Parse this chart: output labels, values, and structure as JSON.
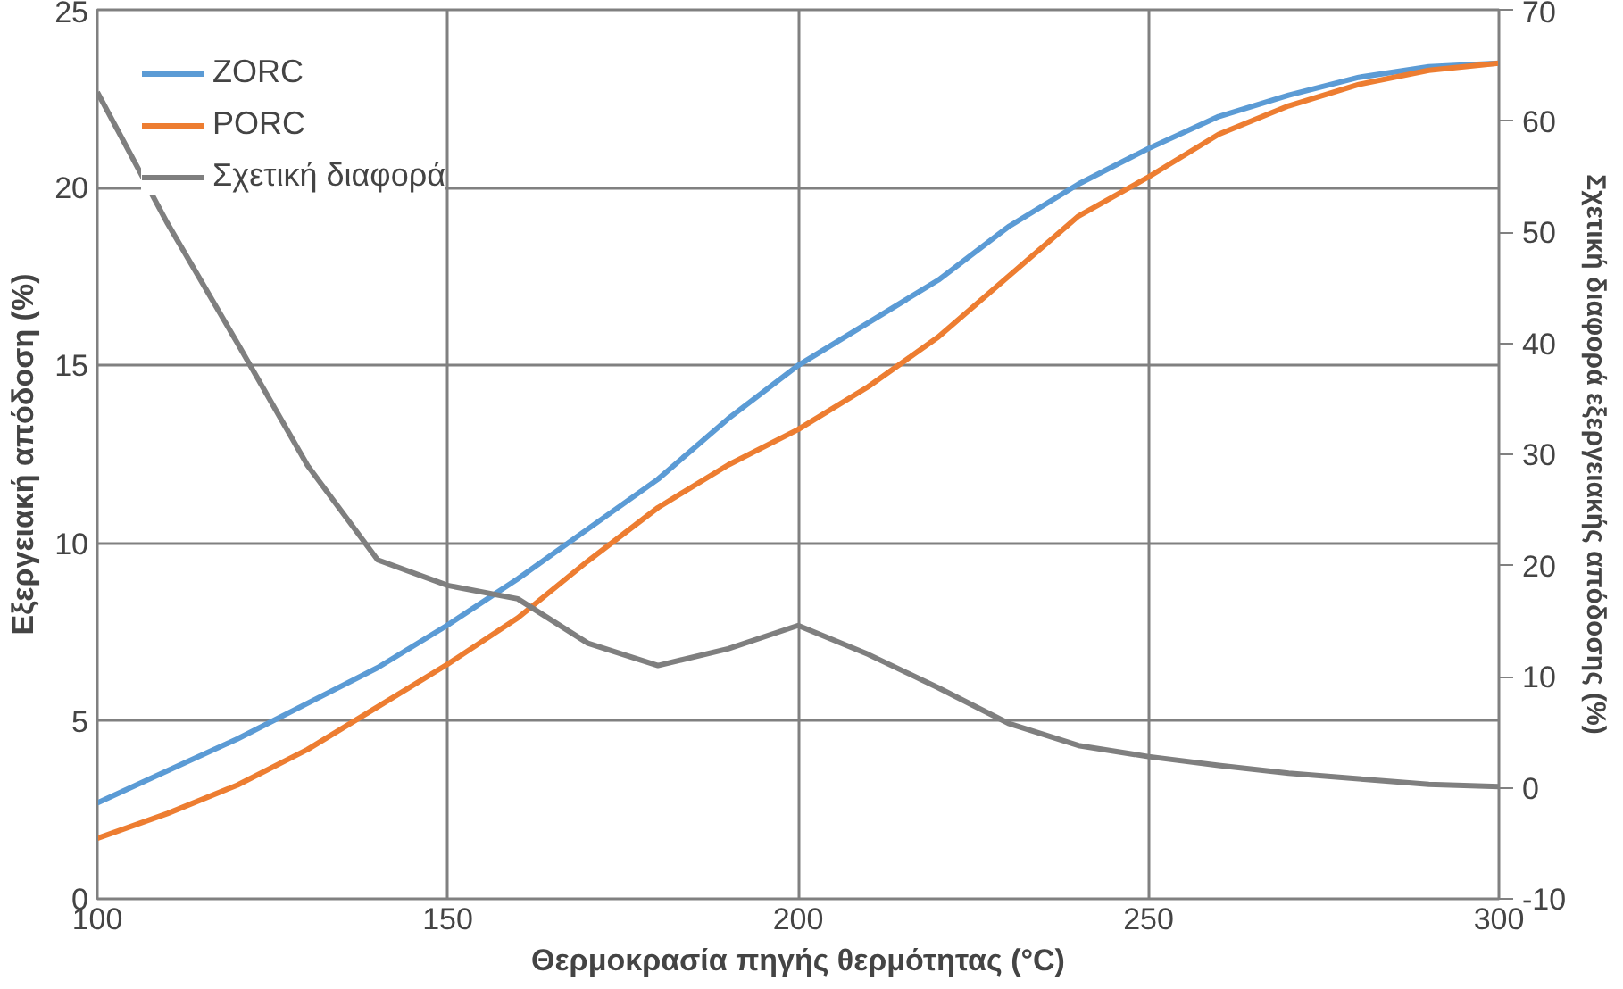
{
  "chart_data": {
    "type": "line",
    "xlabel": "Θερμοκρασία πηγής θερμότητας (°C)",
    "ylabel": "Εξεργειακή απόδοση (%)",
    "y2label": "Σχετική διαφορά εξεργειακής απόδοσης (%)",
    "x": [
      100,
      110,
      120,
      130,
      140,
      150,
      160,
      170,
      180,
      190,
      200,
      210,
      220,
      230,
      240,
      250,
      260,
      270,
      280,
      290,
      300
    ],
    "series": [
      {
        "name": "ZORC",
        "color": "#5b9bd5",
        "values": [
          2.7,
          3.6,
          4.5,
          5.5,
          6.5,
          7.7,
          9.0,
          10.4,
          11.8,
          13.5,
          15.0,
          16.2,
          17.4,
          18.9,
          20.1,
          21.1,
          22.0,
          22.6,
          23.1,
          23.4,
          23.5
        ]
      },
      {
        "name": "PORC",
        "color": "#ed7d31",
        "values": [
          1.7,
          2.4,
          3.2,
          4.2,
          5.4,
          6.6,
          7.9,
          9.5,
          11.0,
          12.2,
          13.2,
          14.4,
          15.8,
          17.5,
          19.2,
          20.3,
          21.5,
          22.3,
          22.9,
          23.3,
          23.5
        ]
      },
      {
        "name": "Σχετική διαφορά",
        "color": "#7f7f7f",
        "axis": "y2",
        "values": [
          62.6,
          50.8,
          40.0,
          29.0,
          20.5,
          18.2,
          17.0,
          13.0,
          11.0,
          12.5,
          14.6,
          12.0,
          9.0,
          5.8,
          3.8,
          2.8,
          2.0,
          1.3,
          0.8,
          0.3,
          0.1
        ]
      }
    ],
    "xlim": [
      100,
      300
    ],
    "xticks": [
      100,
      150,
      200,
      250,
      300
    ],
    "ylim": [
      0,
      25
    ],
    "yticks": [
      0,
      5,
      10,
      15,
      20,
      25
    ],
    "y2lim": [
      -10,
      70
    ],
    "y2ticks": [
      -10,
      0,
      10,
      20,
      30,
      40,
      50,
      60,
      70
    ],
    "grid": true,
    "legend": "top left",
    "line_style": "solid",
    "marker": "none"
  }
}
